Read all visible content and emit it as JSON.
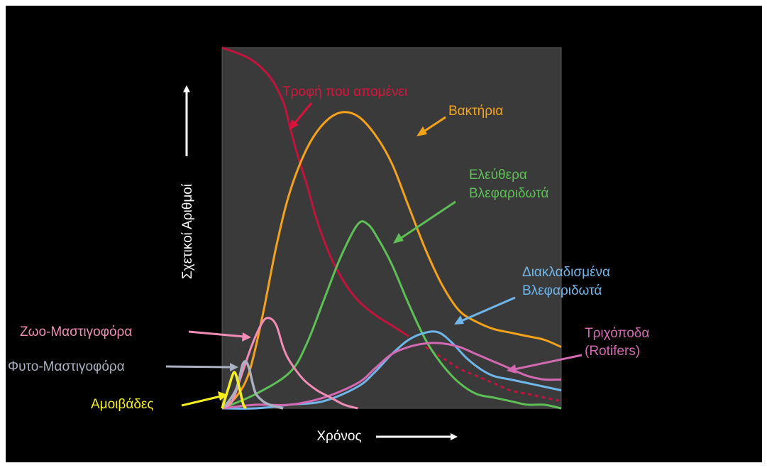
{
  "chart_data": {
    "type": "line",
    "title": "",
    "xlabel": "Χρόνος",
    "ylabel": "Σχετικοί Αριθμοί",
    "x_range": [
      0,
      100
    ],
    "y_range": [
      0,
      100
    ],
    "grid": false,
    "legend": "inline labels with arrows",
    "series": [
      {
        "name": "Τροφή που απομένει",
        "color": "#c0143c",
        "dashed_after": 58,
        "points": [
          [
            0,
            100
          ],
          [
            8,
            97
          ],
          [
            14,
            92
          ],
          [
            18,
            85
          ],
          [
            20,
            78
          ],
          [
            22,
            71
          ],
          [
            25,
            62
          ],
          [
            28,
            52
          ],
          [
            32,
            42
          ],
          [
            36,
            35
          ],
          [
            40,
            30
          ],
          [
            45,
            26
          ],
          [
            50,
            23
          ],
          [
            55,
            20
          ],
          [
            60,
            17
          ],
          [
            65,
            14
          ],
          [
            70,
            11
          ],
          [
            75,
            9
          ],
          [
            80,
            7
          ],
          [
            85,
            5
          ],
          [
            90,
            4
          ],
          [
            95,
            3
          ],
          [
            100,
            2
          ]
        ]
      },
      {
        "name": "Βακτήρια",
        "color": "#f5a21b",
        "points": [
          [
            0,
            0
          ],
          [
            4,
            3
          ],
          [
            8,
            10
          ],
          [
            12,
            26
          ],
          [
            16,
            45
          ],
          [
            20,
            60
          ],
          [
            25,
            72
          ],
          [
            30,
            79
          ],
          [
            35,
            82
          ],
          [
            40,
            81
          ],
          [
            45,
            76
          ],
          [
            50,
            68
          ],
          [
            55,
            56
          ],
          [
            60,
            44
          ],
          [
            65,
            34
          ],
          [
            70,
            27
          ],
          [
            75,
            24
          ],
          [
            80,
            22
          ],
          [
            85,
            21
          ],
          [
            90,
            20
          ],
          [
            95,
            19
          ],
          [
            100,
            17
          ]
        ]
      },
      {
        "name": "Ελεύθερα Βλεφαριδωτά",
        "color": "#5dbf55",
        "points": [
          [
            0,
            0
          ],
          [
            10,
            4
          ],
          [
            20,
            10
          ],
          [
            25,
            18
          ],
          [
            30,
            30
          ],
          [
            35,
            42
          ],
          [
            40,
            51
          ],
          [
            43,
            51
          ],
          [
            46,
            47
          ],
          [
            50,
            40
          ],
          [
            55,
            29
          ],
          [
            60,
            19
          ],
          [
            65,
            12
          ],
          [
            70,
            7
          ],
          [
            75,
            4
          ],
          [
            80,
            3
          ],
          [
            85,
            2
          ],
          [
            90,
            1
          ],
          [
            95,
            1
          ],
          [
            100,
            0
          ]
        ]
      },
      {
        "name": "Διακλαδισμένα Βλεφαριδωτά",
        "color": "#6fb6ea",
        "points": [
          [
            0,
            0
          ],
          [
            10,
            0
          ],
          [
            20,
            1
          ],
          [
            30,
            2
          ],
          [
            40,
            6
          ],
          [
            45,
            10
          ],
          [
            50,
            15
          ],
          [
            55,
            19
          ],
          [
            60,
            21
          ],
          [
            64,
            21
          ],
          [
            68,
            18
          ],
          [
            72,
            14
          ],
          [
            76,
            11
          ],
          [
            80,
            9
          ],
          [
            85,
            8
          ],
          [
            90,
            7
          ],
          [
            95,
            6
          ],
          [
            100,
            5
          ]
        ]
      },
      {
        "name": "Τριχόποδα (Rotifers)",
        "color": "#d469b3",
        "points": [
          [
            0,
            0
          ],
          [
            10,
            1
          ],
          [
            20,
            1
          ],
          [
            30,
            3
          ],
          [
            40,
            7
          ],
          [
            45,
            11
          ],
          [
            50,
            15
          ],
          [
            55,
            17
          ],
          [
            60,
            18
          ],
          [
            65,
            18
          ],
          [
            70,
            17
          ],
          [
            75,
            15
          ],
          [
            80,
            13
          ],
          [
            85,
            11
          ],
          [
            90,
            9
          ],
          [
            95,
            8
          ],
          [
            100,
            8
          ]
        ]
      },
      {
        "name": "Ζωο-Μαστιγοφόρα",
        "color": "#f08cb6",
        "points": [
          [
            0,
            0
          ],
          [
            3,
            2
          ],
          [
            6,
            10
          ],
          [
            9,
            18
          ],
          [
            12,
            24
          ],
          [
            14,
            25
          ],
          [
            16,
            23
          ],
          [
            18,
            17
          ],
          [
            20,
            13
          ],
          [
            24,
            8
          ],
          [
            28,
            5
          ],
          [
            32,
            3
          ],
          [
            36,
            1
          ],
          [
            40,
            0
          ]
        ]
      },
      {
        "name": "Φυτο-Μαστιγοφόρα",
        "color": "#aab0c0",
        "points": [
          [
            0,
            0
          ],
          [
            2,
            2
          ],
          [
            4,
            5
          ],
          [
            5,
            8
          ],
          [
            6,
            12
          ],
          [
            7,
            13
          ],
          [
            8,
            11
          ],
          [
            9,
            7
          ],
          [
            10,
            4
          ],
          [
            12,
            2
          ],
          [
            14,
            1
          ],
          [
            18,
            0
          ]
        ]
      },
      {
        "name": "Αμοιβάδες",
        "color": "#f5ee1c",
        "points": [
          [
            0,
            0
          ],
          [
            1,
            3
          ],
          [
            2,
            6
          ],
          [
            3,
            9
          ],
          [
            3.7,
            10
          ],
          [
            4.5,
            8
          ],
          [
            5.5,
            4
          ],
          [
            6.3,
            1
          ],
          [
            7,
            0
          ]
        ]
      }
    ]
  },
  "labels": {
    "food": "Τροφή που απομένει",
    "bacteria": "Βακτήρια",
    "free_line1": "Ελεύθερα",
    "free_line2": "Βλεφαριδωτά",
    "branched_line1": "Διακλαδισμένα",
    "branched_line2": "Βλεφαριδωτά",
    "rotifers_line1": "Τριχόποδα",
    "rotifers_line2": "(Rotifers)",
    "zoo": "Ζωο-Μαστιγοφόρα",
    "phyto": "Φυτο-Μαστιγοφόρα",
    "amoeba": "Αμοιβάδες"
  }
}
